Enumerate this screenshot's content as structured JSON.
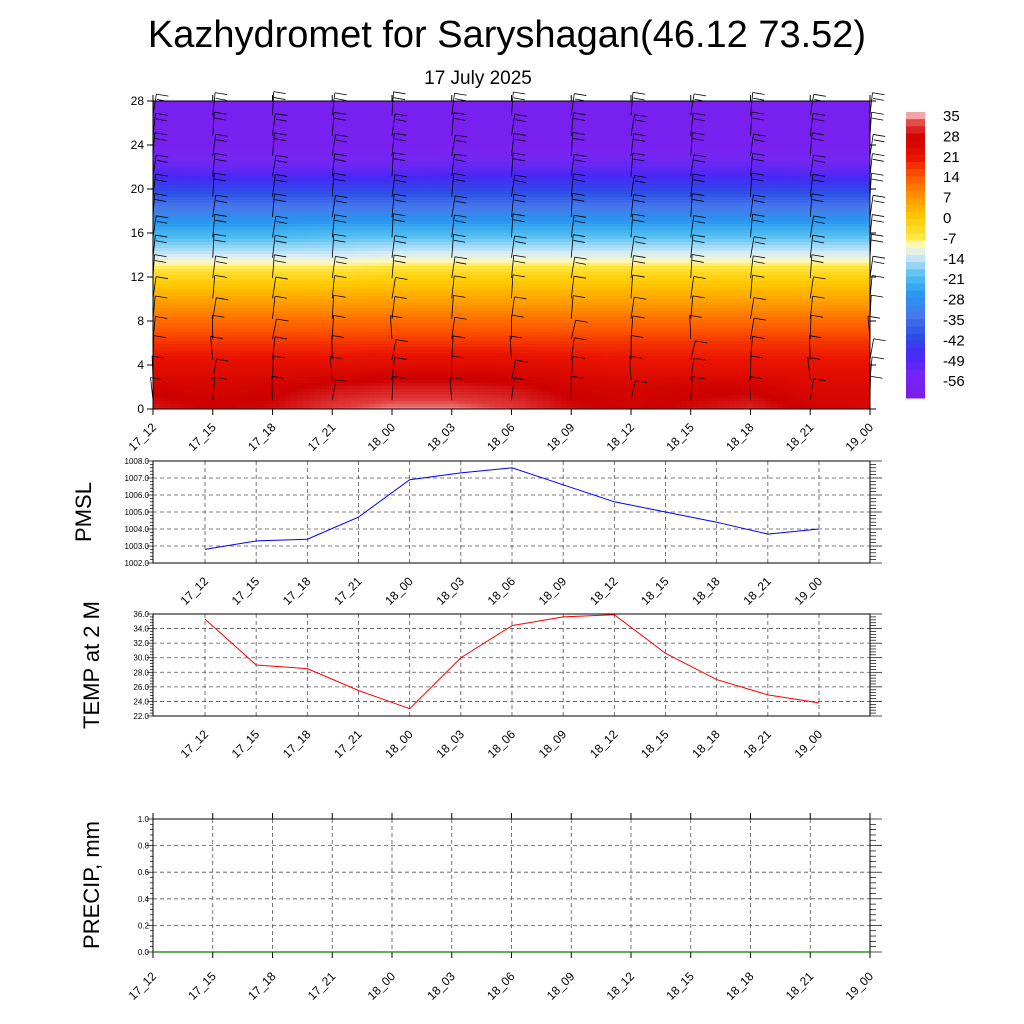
{
  "title": "Kazhydromet for Saryshagan(46.12 73.52)",
  "subtitle": "17 July 2025",
  "chart_data": [
    {
      "type": "heatmap",
      "name": "vertical-cross-section",
      "x": [
        "17_12",
        "17_15",
        "17_18",
        "17_21",
        "18_00",
        "18_03",
        "18_06",
        "18_09",
        "18_12",
        "18_15",
        "18_18",
        "18_21",
        "19_00"
      ],
      "ylim": [
        0,
        28
      ],
      "yticks": [
        "0",
        "4",
        "8",
        "12",
        "16",
        "20",
        "24",
        "28"
      ],
      "levels_y": [
        0,
        2,
        4,
        6,
        8,
        10,
        12,
        14,
        16,
        18,
        20,
        22,
        24,
        26,
        28
      ],
      "values": [
        [
          30,
          28,
          29,
          33,
          35,
          35,
          33,
          29,
          27,
          29,
          31,
          27,
          26
        ],
        [
          27,
          26,
          27,
          29,
          30,
          30,
          29,
          27,
          26,
          27,
          27,
          25,
          25
        ],
        [
          23,
          23,
          23,
          23,
          24,
          24,
          24,
          23,
          22,
          22,
          22,
          22,
          22
        ],
        [
          18,
          18,
          18,
          18,
          18,
          18,
          18,
          18,
          18,
          18,
          18,
          18,
          18
        ],
        [
          12,
          12,
          12,
          12,
          12,
          12,
          12,
          12,
          12,
          12,
          12,
          12,
          12
        ],
        [
          5,
          5,
          5,
          5,
          5,
          5,
          5,
          5,
          5,
          5,
          5,
          5,
          5
        ],
        [
          -3,
          -3,
          -3,
          -3,
          -2,
          -2,
          -2,
          -2,
          -2,
          -2,
          -2,
          -2,
          -2
        ],
        [
          -14,
          -14,
          -14,
          -14,
          -13,
          -13,
          -13,
          -13,
          -13,
          -13,
          -13,
          -13,
          -13
        ],
        [
          -23,
          -23,
          -23,
          -22,
          -22,
          -22,
          -22,
          -22,
          -22,
          -22,
          -22,
          -22,
          -22
        ],
        [
          -33,
          -33,
          -33,
          -33,
          -33,
          -33,
          -33,
          -33,
          -33,
          -33,
          -33,
          -33,
          -33
        ],
        [
          -44,
          -44,
          -44,
          -44,
          -44,
          -44,
          -44,
          -44,
          -44,
          -44,
          -44,
          -44,
          -44
        ],
        [
          -53,
          -54,
          -54,
          -54,
          -54,
          -53,
          -53,
          -53,
          -53,
          -53,
          -53,
          -54,
          -54
        ],
        [
          -60,
          -60,
          -60,
          -60,
          -60,
          -60,
          -60,
          -60,
          -60,
          -60,
          -60,
          -60,
          -60
        ],
        [
          -60,
          -60,
          -60,
          -60,
          -60,
          -60,
          -60,
          -60,
          -60,
          -60,
          -60,
          -60,
          -60
        ],
        [
          -60,
          -60,
          -60,
          -60,
          -60,
          -60,
          -60,
          -60,
          -60,
          -60,
          -60,
          -60,
          -60
        ]
      ],
      "colorbar_labels": [
        "35",
        "28",
        "21",
        "14",
        "7",
        "0",
        "-7",
        "-14",
        "-21",
        "-28",
        "-35",
        "-42",
        "-49",
        "-56"
      ],
      "wind_barbs": true
    },
    {
      "type": "line",
      "name": "pmsl",
      "ylabel": "PMSL",
      "x": [
        "17_12",
        "17_15",
        "17_18",
        "17_21",
        "18_00",
        "18_03",
        "18_06",
        "18_09",
        "18_12",
        "18_15",
        "18_18",
        "18_21",
        "19_00"
      ],
      "values": [
        1002.8,
        1003.3,
        1003.4,
        1004.7,
        1006.9,
        1007.3,
        1007.6,
        1006.6,
        1005.6,
        1005.0,
        1004.4,
        1003.7,
        1004.0
      ],
      "ylim": [
        1002.0,
        1008.0
      ],
      "yticks": [
        "1002.0",
        "1003.0",
        "1004.0",
        "1005.0",
        "1006.0",
        "1007.0",
        "1008.0"
      ],
      "color": "#0000ff",
      "grid": true
    },
    {
      "type": "line",
      "name": "temp2m",
      "ylabel": "TEMP at 2 M",
      "x": [
        "17_12",
        "17_15",
        "17_18",
        "17_21",
        "18_00",
        "18_03",
        "18_06",
        "18_09",
        "18_12",
        "18_15",
        "18_18",
        "18_21",
        "19_00"
      ],
      "values": [
        35.3,
        29.0,
        28.5,
        25.5,
        23.0,
        30.0,
        34.4,
        35.6,
        35.9,
        30.6,
        27.0,
        24.9,
        23.8
      ],
      "ylim": [
        22.0,
        36.0
      ],
      "yticks": [
        "22.0",
        "24.0",
        "26.0",
        "28.0",
        "30.0",
        "32.0",
        "34.0",
        "36.0"
      ],
      "color": "#ff0000",
      "grid": true
    },
    {
      "type": "line",
      "name": "precip",
      "ylabel": "PRECIP, mm",
      "x": [
        "17_12",
        "17_15",
        "17_18",
        "17_21",
        "18_00",
        "18_03",
        "18_06",
        "18_09",
        "18_12",
        "18_15",
        "18_18",
        "18_21",
        "19_00"
      ],
      "values": [
        0,
        0,
        0,
        0,
        0,
        0,
        0,
        0,
        0,
        0,
        0,
        0,
        0
      ],
      "ylim": [
        0.0,
        1.0
      ],
      "yticks": [
        "0.0",
        "0.2",
        "0.4",
        "0.6",
        "0.8",
        "1.0"
      ],
      "color": "#008000",
      "grid": true
    }
  ]
}
